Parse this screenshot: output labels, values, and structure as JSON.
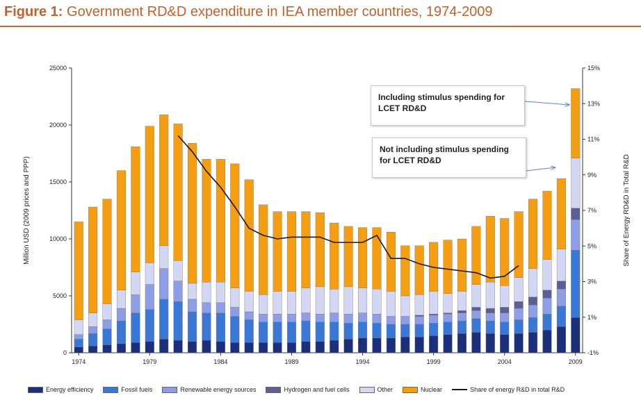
{
  "title_prefix": "Figure 1:",
  "title_text": "Government RD&D expenditure in IEA member countries, 1974-2009",
  "colors": {
    "Energy efficiency": "#1c2f7a",
    "Fossil fuels": "#3a78d8",
    "Renewable energy sources": "#8e9ee6",
    "Hydrogen and fuel cells": "#5a5f96",
    "Other": "#d4d7f4",
    "Nuclear": "#f59e12",
    "line": "#1a1a1a",
    "title": "#c0622e"
  },
  "annotations": {
    "with_stimulus": "Including stimulus spending for LCET RD&D",
    "without_stimulus": "Not including stimulus spending for LCET RD&D"
  },
  "chart_data": {
    "type": "bar",
    "stacked": true,
    "title": "Government RD&D expenditure in IEA member countries, 1974-2009",
    "ylabel": "Million USD (2009 prices and PPP)",
    "y2label": "Share of Energy RD&D in Total R&D",
    "ylim": [
      0,
      25000
    ],
    "y2lim": [
      -1,
      15
    ],
    "yticks": [
      "0",
      "5000",
      "10000",
      "15000",
      "20000",
      "25000"
    ],
    "y2ticks": [
      "-1%",
      "1%",
      "3%",
      "5%",
      "7%",
      "9%",
      "11%",
      "13%",
      "15%"
    ],
    "xticks": [
      "1974",
      "1979",
      "1984",
      "1989",
      "1994",
      "1999",
      "2004",
      "2009"
    ],
    "categories": [
      "1974",
      "1975",
      "1976",
      "1977",
      "1978",
      "1979",
      "1980",
      "1981",
      "1982",
      "1983",
      "1984",
      "1985",
      "1986",
      "1987",
      "1988",
      "1989",
      "1990",
      "1991",
      "1992",
      "1993",
      "1994",
      "1995",
      "1996",
      "1997",
      "1998",
      "1999",
      "2000",
      "2001",
      "2002",
      "2003",
      "2004",
      "2005",
      "2006",
      "2007",
      "2008",
      "2009"
    ],
    "series": [
      {
        "name": "Energy efficiency",
        "values": [
          500,
          600,
          700,
          800,
          900,
          1000,
          1200,
          1100,
          1000,
          1100,
          1000,
          900,
          900,
          900,
          900,
          900,
          1000,
          1000,
          1100,
          1200,
          1300,
          1300,
          1300,
          1400,
          1400,
          1500,
          1600,
          1700,
          1800,
          1700,
          1600,
          1700,
          1800,
          2000,
          2300,
          3100
        ]
      },
      {
        "name": "Fossil fuels",
        "values": [
          700,
          1100,
          1400,
          2000,
          2600,
          2800,
          3500,
          3400,
          2600,
          2400,
          2500,
          2300,
          2000,
          1800,
          1800,
          1800,
          1800,
          1700,
          1600,
          1400,
          1400,
          1300,
          1200,
          1100,
          1100,
          1100,
          1100,
          1100,
          1200,
          1100,
          1100,
          1200,
          1300,
          1400,
          1800,
          5900
        ]
      },
      {
        "name": "Renewable energy sources",
        "values": [
          400,
          600,
          800,
          1100,
          1600,
          2200,
          2700,
          1800,
          1100,
          900,
          900,
          800,
          700,
          700,
          700,
          700,
          700,
          700,
          800,
          800,
          800,
          800,
          700,
          700,
          700,
          700,
          700,
          700,
          700,
          700,
          800,
          1000,
          1100,
          1400,
          1500,
          2700
        ]
      },
      {
        "name": "Hydrogen and fuel cells",
        "values": [
          0,
          0,
          0,
          0,
          0,
          0,
          0,
          0,
          0,
          0,
          0,
          0,
          0,
          0,
          0,
          0,
          0,
          0,
          0,
          0,
          0,
          0,
          0,
          0,
          100,
          100,
          100,
          200,
          300,
          400,
          500,
          600,
          700,
          700,
          700,
          1000
        ]
      },
      {
        "name": "Other",
        "values": [
          1300,
          1200,
          1400,
          1600,
          2000,
          1900,
          2000,
          1800,
          1400,
          1800,
          1800,
          1700,
          1800,
          1700,
          2000,
          2000,
          2200,
          2400,
          2100,
          2400,
          2200,
          2200,
          2200,
          1800,
          1800,
          2000,
          1700,
          1700,
          2000,
          2300,
          1900,
          2100,
          2500,
          2700,
          2800,
          4400
        ]
      },
      {
        "name": "Nuclear",
        "values": [
          8600,
          9300,
          9200,
          10500,
          11000,
          12000,
          11500,
          12000,
          12300,
          10800,
          10800,
          10900,
          9800,
          7900,
          7000,
          7000,
          6700,
          6500,
          5800,
          5300,
          5300,
          5400,
          5200,
          4400,
          4300,
          4300,
          4700,
          4600,
          5100,
          5800,
          5900,
          5800,
          6100,
          6000,
          6200,
          6100
        ]
      }
    ],
    "line": {
      "name": "Share of energy R&D in total R&D",
      "x_start": "1981",
      "values": [
        11.2,
        10.3,
        9.2,
        8.3,
        7.2,
        6.0,
        5.6,
        5.4,
        5.5,
        5.5,
        5.5,
        5.2,
        5.2,
        5.2,
        5.6,
        4.3,
        4.3,
        4.0,
        3.8,
        3.7,
        3.6,
        3.5,
        3.2,
        3.3,
        3.9
      ]
    },
    "legend_position": "bottom",
    "grid": false
  }
}
